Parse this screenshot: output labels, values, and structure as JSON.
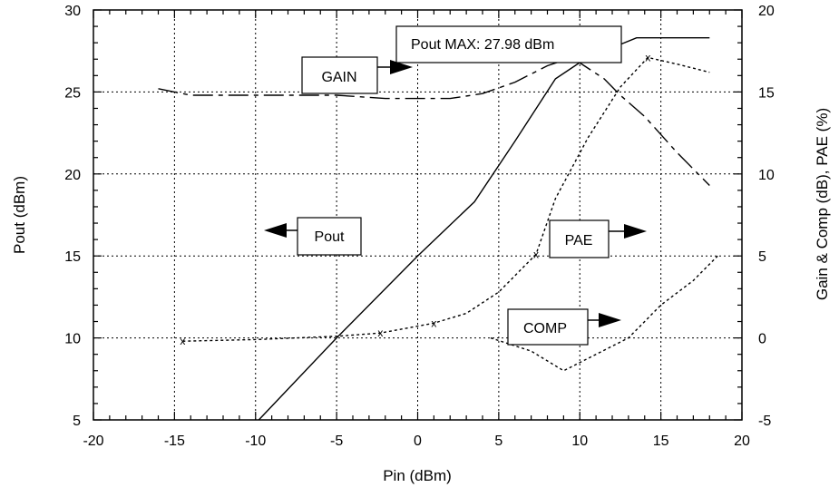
{
  "chart_data": {
    "type": "line",
    "xlabel": "Pin (dBm)",
    "ylabel_left": "Pout (dBm)",
    "ylabel_right": "Gain & Comp (dB), PAE (%)",
    "xlim": [
      -20,
      20
    ],
    "ylim_left": [
      5,
      30
    ],
    "ylim_right": [
      -5,
      20
    ],
    "x_ticks": [
      "-20",
      "-15",
      "-10",
      "-5",
      "0",
      "5",
      "10",
      "15",
      "20"
    ],
    "y_left_ticks": [
      "5",
      "10",
      "15",
      "20",
      "25",
      "30"
    ],
    "y_right_ticks": [
      "-5",
      "0",
      "5",
      "10",
      "15",
      "20"
    ],
    "grid": true,
    "series": [
      {
        "name": "Pout",
        "axis": "left",
        "style": "solid",
        "x": [
          -9.8,
          -5,
          0,
          3.5,
          6,
          8.5,
          10,
          12,
          13.5,
          18
        ],
        "y": [
          5,
          10,
          15,
          18.3,
          22,
          25.8,
          26.8,
          27.7,
          28.3,
          28.3
        ]
      },
      {
        "name": "GAIN",
        "axis": "right",
        "style": "long-dash",
        "x": [
          -16,
          -14,
          -10,
          -5,
          -2,
          0,
          2,
          4,
          6,
          8,
          9.5,
          11.5,
          12.5,
          14,
          16,
          18
        ],
        "y": [
          15.2,
          14.8,
          14.8,
          14.8,
          14.6,
          14.6,
          14.6,
          14.9,
          15.6,
          16.6,
          17.1,
          15.8,
          14.8,
          13.5,
          11.3,
          9.3
        ]
      },
      {
        "name": "PAE",
        "axis": "right",
        "style": "dotted",
        "x": [
          -14.5,
          -10,
          -5,
          -2.3,
          1,
          3,
          5,
          7.3,
          8.5,
          10.5,
          12.5,
          14.2,
          16,
          18
        ],
        "y": [
          -0.2,
          -0.1,
          0.1,
          0.3,
          0.9,
          1.5,
          2.8,
          5.1,
          8.5,
          12.2,
          15.3,
          17.1,
          16.7,
          16.2
        ]
      },
      {
        "name": "COMP",
        "axis": "right",
        "style": "dotted",
        "x": [
          4.5,
          7,
          9,
          11,
          13,
          15,
          17,
          18.5
        ],
        "y": [
          0,
          -0.8,
          -2,
          -1,
          0,
          2,
          3.5,
          5
        ]
      }
    ],
    "pae_marked_points": [
      {
        "x": -14.5,
        "y": -0.2
      },
      {
        "x": -2.3,
        "y": 0.3
      },
      {
        "x": 1,
        "y": 0.9
      },
      {
        "x": 7.3,
        "y": 5.1
      },
      {
        "x": 14.2,
        "y": 17.1
      }
    ],
    "annotations": {
      "pout_max": "Pout MAX:  27.98 dBm",
      "gain": "GAIN",
      "pout": "Pout",
      "pae": "PAE",
      "comp": "COMP"
    },
    "marker_symbol": "x"
  }
}
